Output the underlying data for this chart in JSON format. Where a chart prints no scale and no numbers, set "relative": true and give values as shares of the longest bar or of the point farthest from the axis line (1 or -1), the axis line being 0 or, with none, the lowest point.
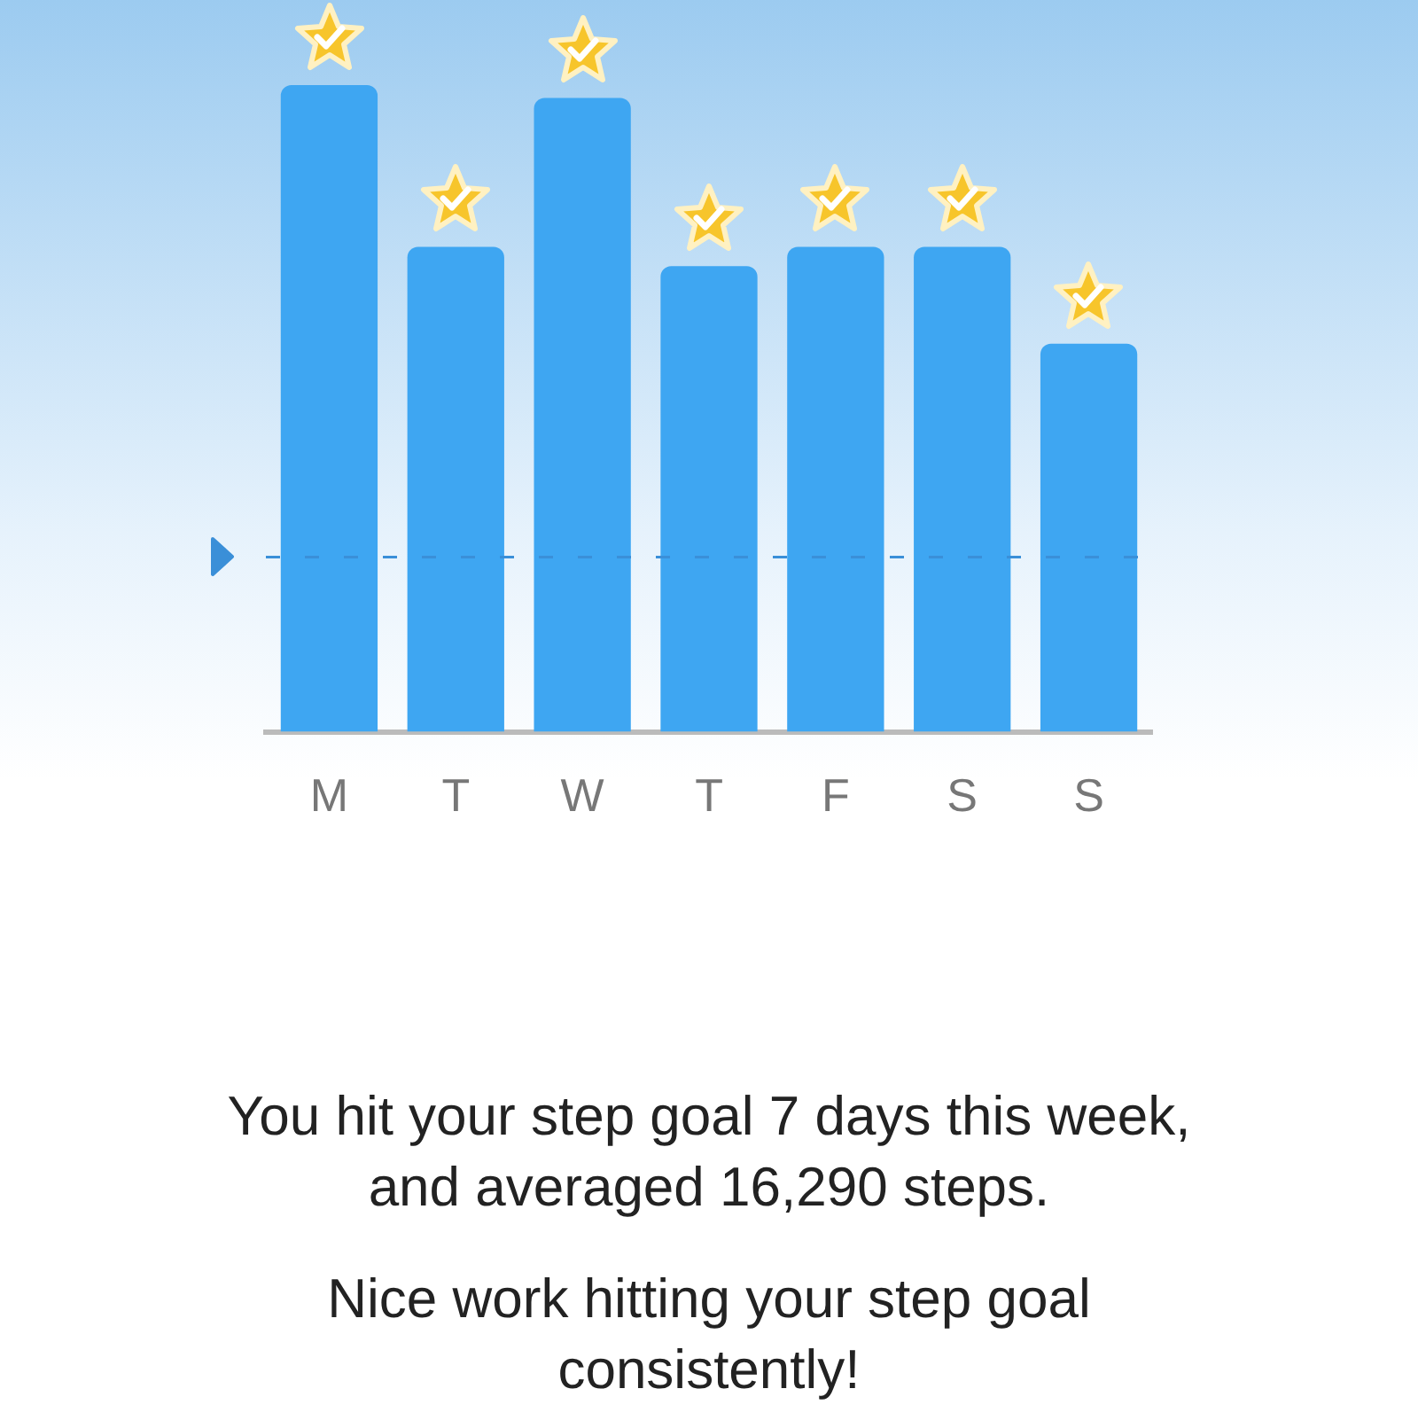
{
  "chart_data": {
    "type": "bar",
    "relative": true,
    "categories": [
      "M",
      "T",
      "W",
      "T",
      "F",
      "S",
      "S"
    ],
    "values": [
      1,
      0.75,
      0.98,
      0.72,
      0.75,
      0.75,
      0.6
    ],
    "color": "#3ea6f2",
    "ref_lines": [
      {
        "axis": "y",
        "value": 0.27,
        "line_style": "dashed",
        "color": "#3a8fd8"
      }
    ],
    "annotations": [
      "You hit your step goal 7 days this week, and averaged 16,290 steps.",
      "Nice work hitting your step goal consistently!"
    ]
  }
}
